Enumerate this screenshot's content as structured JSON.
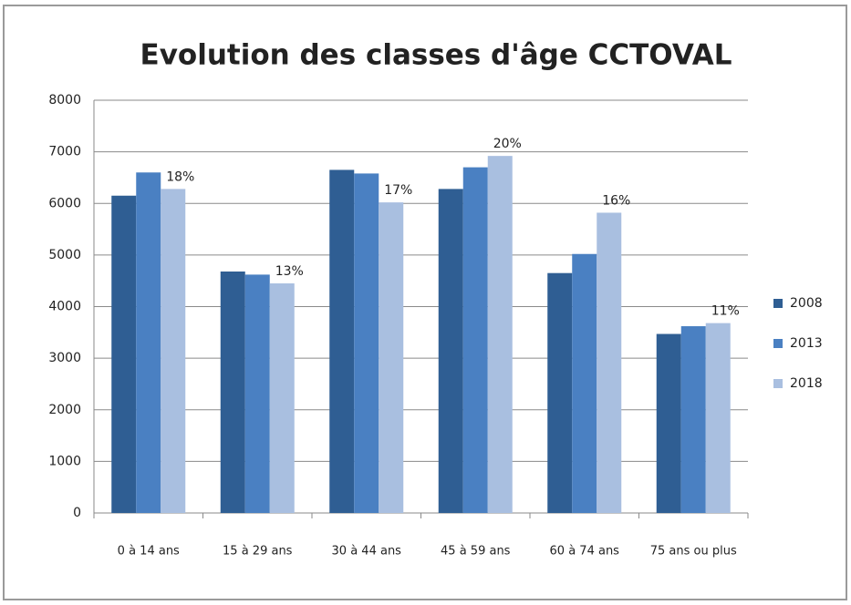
{
  "chart_data": {
    "type": "bar",
    "title": "Evolution des classes d'âge CCTOVAL",
    "categories": [
      "0 à 14 ans",
      "15 à 29 ans",
      "30 à 44 ans",
      "45 à 59 ans",
      "60 à 74 ans",
      "75 ans ou plus"
    ],
    "series": [
      {
        "name": "2008",
        "color": "#2f5e93",
        "values": [
          6150,
          4680,
          6650,
          6280,
          4650,
          3470
        ]
      },
      {
        "name": "2013",
        "color": "#4a80c2",
        "values": [
          6600,
          4620,
          6580,
          6700,
          5020,
          3620
        ]
      },
      {
        "name": "2018",
        "color": "#a9bfe0",
        "values": [
          6280,
          4450,
          6020,
          6920,
          5820,
          3680
        ]
      }
    ],
    "annotations": [
      "18%",
      "13%",
      "17%",
      "20%",
      "16%",
      "11%"
    ],
    "ylim": [
      0,
      8000
    ],
    "yticks": [
      0,
      1000,
      2000,
      3000,
      4000,
      5000,
      6000,
      7000,
      8000
    ],
    "grid": true,
    "legend": "right"
  }
}
